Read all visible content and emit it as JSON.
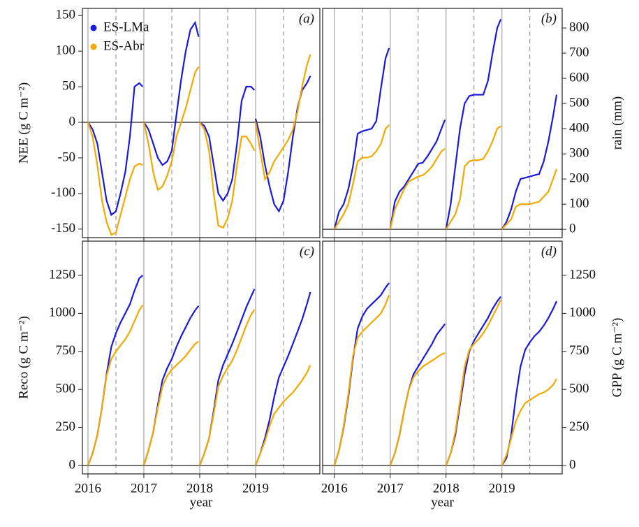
{
  "chart_data": [
    {
      "type": "line",
      "annotation": "(a)",
      "y_label": "NEE (g C m⁻²)",
      "yaxis": "left",
      "legend": "upper left",
      "x": [
        2016,
        2016.083,
        2016.167,
        2016.25,
        2016.333,
        2016.417,
        2016.5,
        2016.583,
        2016.667,
        2016.75,
        2016.833,
        2016.917,
        2016.98,
        2016.99,
        2017,
        2017.083,
        2017.167,
        2017.25,
        2017.333,
        2017.417,
        2017.5,
        2017.583,
        2017.667,
        2017.75,
        2017.833,
        2017.917,
        2017.98,
        2017.99,
        2018,
        2018.083,
        2018.167,
        2018.25,
        2018.333,
        2018.417,
        2018.5,
        2018.583,
        2018.667,
        2018.75,
        2018.833,
        2018.917,
        2018.98,
        2018.99,
        2019,
        2019.083,
        2019.167,
        2019.25,
        2019.333,
        2019.417,
        2019.5,
        2019.583,
        2019.667,
        2019.75,
        2019.833,
        2019.917,
        2019.98,
        2019.99
      ],
      "xlim": [
        2015.9,
        2020.15
      ],
      "xticks": [
        2016,
        2017,
        2018,
        2019
      ],
      "ylim": [
        -162,
        160
      ],
      "yticks": [
        -150,
        -100,
        -50,
        0,
        50,
        100,
        150
      ],
      "series": [
        {
          "name": "ES-LMa",
          "color": "#1a1adb",
          "values": [
            0,
            -10,
            -30,
            -70,
            -110,
            -130,
            -125,
            -100,
            -70,
            -20,
            50,
            55,
            50,
            null,
            0,
            -10,
            -30,
            -50,
            -60,
            -55,
            -40,
            10,
            60,
            100,
            130,
            140,
            120,
            null,
            0,
            -5,
            -20,
            -60,
            -100,
            -110,
            -100,
            -80,
            -30,
            30,
            50,
            50,
            45,
            null,
            5,
            -20,
            -60,
            -90,
            -115,
            -125,
            -110,
            -70,
            -20,
            20,
            45,
            55,
            65,
            null
          ]
        },
        {
          "name": "ES-Abr",
          "color": "#f5a800",
          "values": [
            0,
            -20,
            -60,
            -110,
            -140,
            -158,
            -155,
            -130,
            -105,
            -80,
            -62,
            -58,
            -60,
            null,
            0,
            -30,
            -70,
            -95,
            -90,
            -75,
            -55,
            -20,
            0,
            20,
            45,
            70,
            78,
            null,
            0,
            -10,
            -40,
            -100,
            -145,
            -148,
            -135,
            -110,
            -60,
            -20,
            -20,
            -30,
            -40,
            null,
            0,
            -40,
            -80,
            -70,
            -55,
            -45,
            -35,
            -25,
            -10,
            15,
            50,
            80,
            95,
            null
          ]
        }
      ]
    },
    {
      "type": "line",
      "annotation": "(b)",
      "y_label": "rain (mm)",
      "yaxis": "right",
      "x": [
        2016,
        2016.083,
        2016.167,
        2016.25,
        2016.333,
        2016.417,
        2016.5,
        2016.583,
        2016.667,
        2016.75,
        2016.833,
        2016.917,
        2016.98,
        2016.99,
        2017,
        2017.083,
        2017.167,
        2017.25,
        2017.333,
        2017.417,
        2017.5,
        2017.583,
        2017.667,
        2017.75,
        2017.833,
        2017.917,
        2017.98,
        2017.99,
        2018,
        2018.083,
        2018.167,
        2018.25,
        2018.333,
        2018.417,
        2018.5,
        2018.583,
        2018.667,
        2018.75,
        2018.833,
        2018.917,
        2018.98,
        2018.99,
        2019,
        2019.083,
        2019.167,
        2019.25,
        2019.333,
        2019.417,
        2019.5,
        2019.583,
        2019.667,
        2019.75,
        2019.833,
        2019.917,
        2019.98,
        2019.99
      ],
      "xlim": [
        2015.79,
        2020.08
      ],
      "xticks": [
        2016,
        2017,
        2018,
        2019
      ],
      "ylim": [
        -33,
        878
      ],
      "yticks": [
        0,
        100,
        200,
        300,
        400,
        500,
        600,
        700,
        800
      ],
      "series": [
        {
          "color": "#1a1adb",
          "values": [
            0,
            70,
            100,
            160,
            250,
            380,
            390,
            395,
            400,
            430,
            560,
            680,
            720,
            null,
            0,
            110,
            150,
            170,
            200,
            230,
            260,
            265,
            290,
            320,
            350,
            400,
            435,
            null,
            0,
            100,
            250,
            400,
            500,
            530,
            535,
            535,
            535,
            590,
            700,
            800,
            835,
            null,
            0,
            30,
            80,
            150,
            200,
            205,
            210,
            215,
            220,
            270,
            350,
            450,
            535,
            null
          ]
        },
        {
          "color": "#f5a800",
          "values": [
            0,
            30,
            60,
            100,
            180,
            270,
            285,
            285,
            290,
            310,
            340,
            400,
            415,
            null,
            0,
            80,
            120,
            160,
            190,
            200,
            210,
            215,
            230,
            250,
            280,
            310,
            320,
            null,
            0,
            30,
            60,
            120,
            250,
            270,
            275,
            275,
            280,
            310,
            350,
            400,
            410,
            null,
            0,
            20,
            40,
            90,
            100,
            100,
            100,
            105,
            110,
            130,
            150,
            200,
            240,
            null
          ]
        }
      ]
    },
    {
      "type": "line",
      "annotation": "(c)",
      "y_label": "Reco (g C m⁻²)",
      "x_label": "year",
      "yaxis": "left",
      "x": [
        2016,
        2016.083,
        2016.167,
        2016.25,
        2016.333,
        2016.417,
        2016.5,
        2016.583,
        2016.667,
        2016.75,
        2016.833,
        2016.917,
        2016.98,
        2016.99,
        2017,
        2017.083,
        2017.167,
        2017.25,
        2017.333,
        2017.417,
        2017.5,
        2017.583,
        2017.667,
        2017.75,
        2017.833,
        2017.917,
        2017.98,
        2017.99,
        2018,
        2018.083,
        2018.167,
        2018.25,
        2018.333,
        2018.417,
        2018.5,
        2018.583,
        2018.667,
        2018.75,
        2018.833,
        2018.917,
        2018.98,
        2018.99,
        2019,
        2019.083,
        2019.167,
        2019.25,
        2019.333,
        2019.417,
        2019.5,
        2019.583,
        2019.667,
        2019.75,
        2019.833,
        2019.917,
        2019.98,
        2019.99
      ],
      "xlim": [
        2015.9,
        2020.15
      ],
      "xticks": [
        2016,
        2017,
        2018,
        2019
      ],
      "ylim": [
        -55,
        1475
      ],
      "yticks": [
        0,
        250,
        500,
        750,
        1000,
        1250
      ],
      "series": [
        {
          "color": "#1a1adb",
          "values": [
            0,
            80,
            200,
            380,
            600,
            780,
            870,
            940,
            1000,
            1060,
            1150,
            1230,
            1250,
            null,
            0,
            100,
            220,
            400,
            560,
            640,
            700,
            780,
            850,
            910,
            970,
            1020,
            1050,
            null,
            0,
            80,
            180,
            360,
            560,
            660,
            730,
            800,
            880,
            960,
            1040,
            1110,
            1160,
            null,
            0,
            80,
            180,
            300,
            450,
            580,
            650,
            720,
            800,
            880,
            960,
            1060,
            1140,
            null
          ]
        },
        {
          "color": "#f5a800",
          "values": [
            0,
            80,
            200,
            380,
            590,
            700,
            750,
            790,
            830,
            880,
            950,
            1020,
            1055,
            null,
            0,
            100,
            220,
            380,
            520,
            590,
            630,
            660,
            690,
            720,
            760,
            800,
            815,
            null,
            0,
            80,
            180,
            340,
            520,
            590,
            640,
            690,
            760,
            840,
            920,
            990,
            1025,
            null,
            0,
            80,
            160,
            260,
            340,
            380,
            420,
            450,
            480,
            520,
            560,
            610,
            660,
            null
          ]
        }
      ]
    },
    {
      "type": "line",
      "annotation": "(d)",
      "y_label": "GPP (g C m⁻²)",
      "x_label": "year",
      "yaxis": "right",
      "x": [
        2016,
        2016.083,
        2016.167,
        2016.25,
        2016.333,
        2016.417,
        2016.5,
        2016.583,
        2016.667,
        2016.75,
        2016.833,
        2016.917,
        2016.98,
        2016.99,
        2017,
        2017.083,
        2017.167,
        2017.25,
        2017.333,
        2017.417,
        2017.5,
        2017.583,
        2017.667,
        2017.75,
        2017.833,
        2017.917,
        2017.98,
        2017.99,
        2018,
        2018.083,
        2018.167,
        2018.25,
        2018.333,
        2018.417,
        2018.5,
        2018.583,
        2018.667,
        2018.75,
        2018.833,
        2018.917,
        2018.98,
        2018.99,
        2019,
        2019.083,
        2019.167,
        2019.25,
        2019.333,
        2019.417,
        2019.5,
        2019.583,
        2019.667,
        2019.75,
        2019.833,
        2019.917,
        2019.98,
        2019.99
      ],
      "xlim": [
        2015.79,
        2020.08
      ],
      "xticks": [
        2016,
        2017,
        2018,
        2019
      ],
      "ylim": [
        -55,
        1475
      ],
      "yticks": [
        0,
        250,
        500,
        750,
        1000,
        1250
      ],
      "series": [
        {
          "color": "#1a1adb",
          "values": [
            0,
            100,
            250,
            450,
            700,
            900,
            980,
            1030,
            1060,
            1090,
            1120,
            1170,
            1200,
            null,
            0,
            80,
            200,
            360,
            500,
            600,
            650,
            700,
            750,
            800,
            860,
            900,
            930,
            null,
            0,
            80,
            200,
            400,
            600,
            750,
            820,
            870,
            920,
            970,
            1030,
            1080,
            1110,
            null,
            0,
            50,
            200,
            450,
            650,
            760,
            810,
            850,
            880,
            920,
            970,
            1030,
            1080,
            null
          ]
        },
        {
          "color": "#f5a800",
          "values": [
            0,
            100,
            260,
            470,
            720,
            840,
            880,
            910,
            940,
            970,
            1000,
            1060,
            1120,
            null,
            0,
            80,
            200,
            360,
            500,
            580,
            620,
            650,
            670,
            690,
            710,
            730,
            740,
            null,
            0,
            80,
            220,
            430,
            650,
            760,
            800,
            830,
            870,
            920,
            980,
            1040,
            1090,
            null,
            0,
            70,
            180,
            290,
            360,
            410,
            430,
            450,
            470,
            480,
            500,
            530,
            570,
            null
          ]
        }
      ]
    }
  ]
}
